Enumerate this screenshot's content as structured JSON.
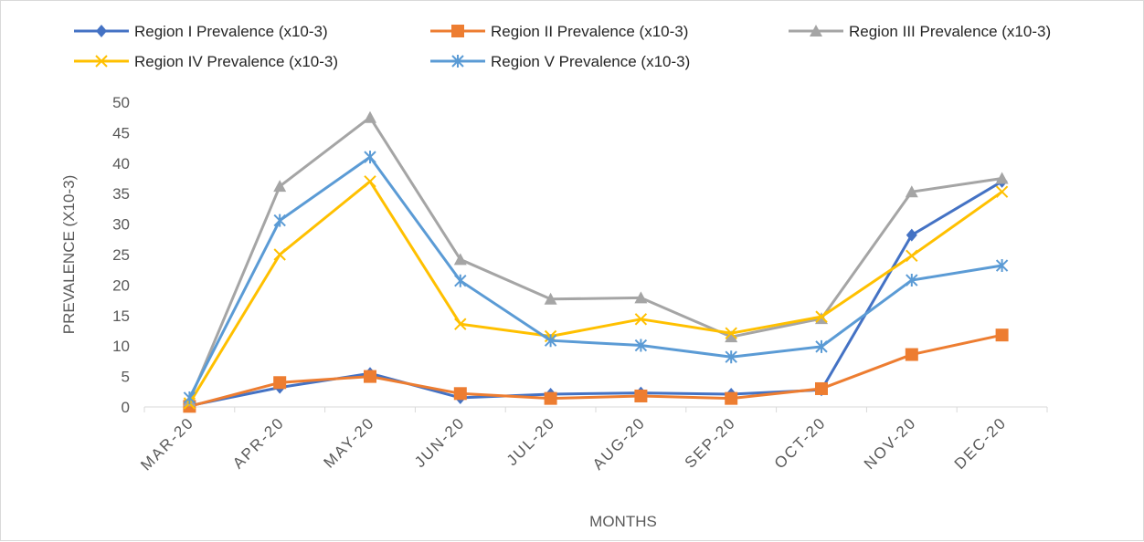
{
  "chart_data": {
    "type": "line",
    "title": "",
    "xlabel": "MONTHS",
    "ylabel": "PREVALENCE (X10-3)",
    "ylim": [
      0,
      50
    ],
    "yticks": [
      0,
      5,
      10,
      15,
      20,
      25,
      30,
      35,
      40,
      45,
      50
    ],
    "grid": false,
    "legend_position": "top",
    "categories": [
      "MAR-20",
      "APR-20",
      "MAY-20",
      "JUN-20",
      "JUL-20",
      "AUG-20",
      "SEP-20",
      "OCT-20",
      "NOV-20",
      "DEC-20"
    ],
    "series": [
      {
        "name": "Region I Prevalence (x10-3)",
        "color": "#4472c4",
        "marker": "diamond",
        "values": [
          0.2,
          3.2,
          5.5,
          1.5,
          2.1,
          2.3,
          2.1,
          2.8,
          28.2,
          37.0
        ]
      },
      {
        "name": "Region II Prevalence (x10-3)",
        "color": "#ed7d31",
        "marker": "square",
        "values": [
          0.1,
          4.0,
          5.0,
          2.2,
          1.4,
          1.8,
          1.4,
          3.0,
          8.6,
          11.8
        ]
      },
      {
        "name": "Region III Prevalence (x10-3)",
        "color": "#a5a5a5",
        "marker": "triangle",
        "values": [
          1.0,
          36.2,
          47.5,
          24.2,
          17.7,
          17.9,
          11.5,
          14.5,
          35.3,
          37.5
        ]
      },
      {
        "name": "Region IV Prevalence (x10-3)",
        "color": "#ffc000",
        "marker": "x",
        "values": [
          0.6,
          25.0,
          37.0,
          13.6,
          11.6,
          14.4,
          12.1,
          14.8,
          24.8,
          35.3
        ]
      },
      {
        "name": "Region V Prevalence (x10-3)",
        "color": "#5b9bd5",
        "marker": "asterisk",
        "values": [
          1.5,
          30.6,
          41.0,
          20.7,
          10.9,
          10.1,
          8.2,
          9.9,
          20.8,
          23.2
        ]
      }
    ]
  }
}
